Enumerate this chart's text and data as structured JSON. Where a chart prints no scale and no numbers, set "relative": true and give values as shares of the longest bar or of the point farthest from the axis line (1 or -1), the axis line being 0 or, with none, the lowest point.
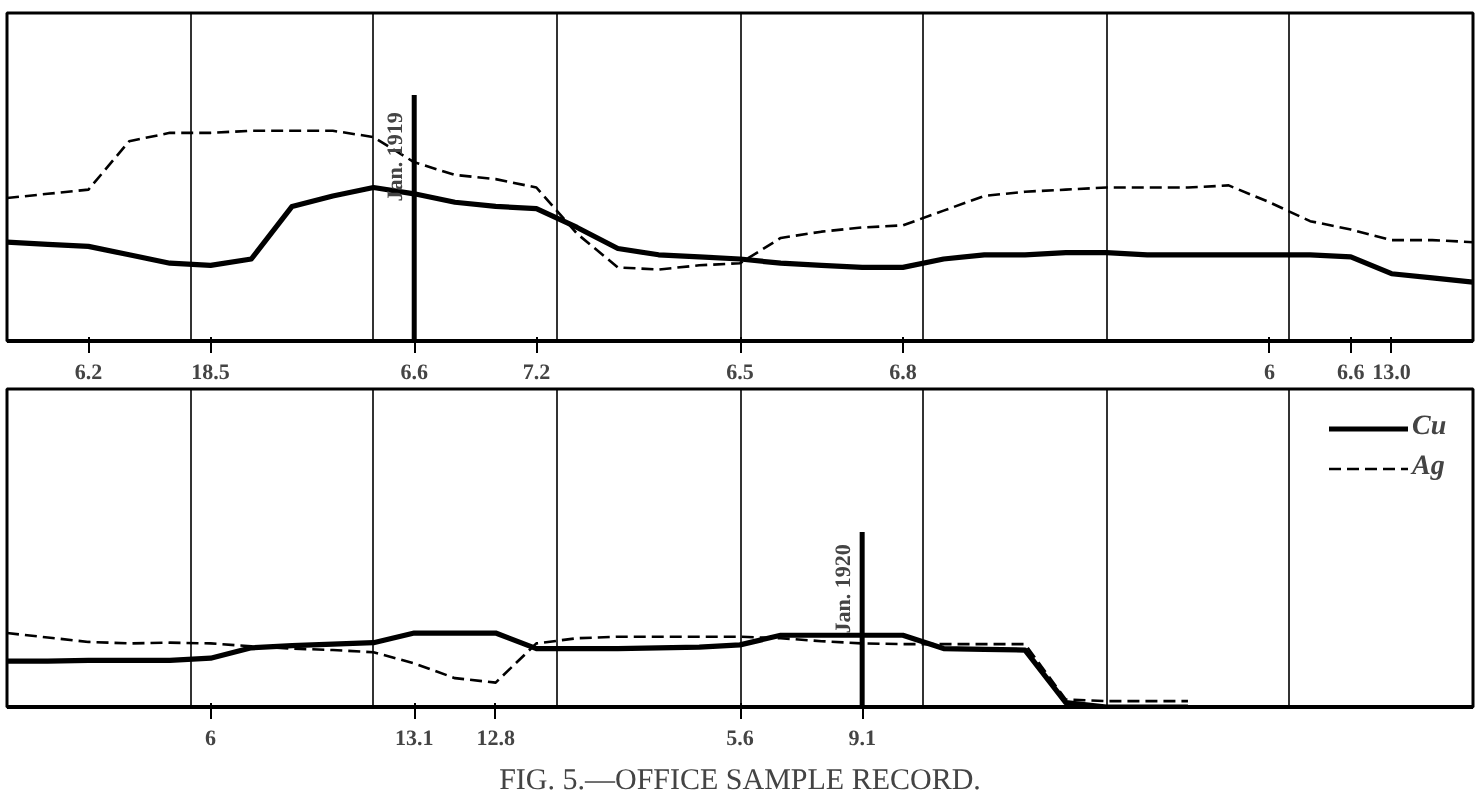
{
  "chart_data": [
    {
      "type": "line",
      "relative": true,
      "grid": "x",
      "legend": false,
      "categories": [
        null,
        null,
        "6.2",
        null,
        null,
        "18.5",
        null,
        null,
        null,
        null,
        "6.6",
        null,
        null,
        "7.2",
        null,
        null,
        null,
        null,
        "6.5",
        null,
        null,
        null,
        "6.8",
        null,
        null,
        null,
        null,
        null,
        null,
        null,
        null,
        "6",
        null,
        "6.6",
        "13.0",
        null,
        null
      ],
      "ref_lines": [
        {
          "axis": "x",
          "value": "6.6",
          "label": "Jan. 1919",
          "line_style": "solid"
        }
      ],
      "series": [
        {
          "color": "#000000",
          "line_style": "solid",
          "values": [
            0.47,
            0.46,
            0.45,
            0.41,
            0.37,
            0.36,
            0.39,
            0.64,
            0.69,
            0.73,
            0.7,
            0.66,
            0.64,
            0.63,
            0.54,
            0.44,
            0.41,
            0.4,
            0.39,
            0.37,
            0.36,
            0.35,
            0.35,
            0.39,
            0.41,
            0.41,
            0.42,
            0.42,
            0.41,
            0.41,
            0.41,
            0.41,
            0.41,
            0.4,
            0.32,
            0.3,
            0.28
          ]
        },
        {
          "color": "#000000",
          "line_style": "dashed",
          "values": [
            0.68,
            0.7,
            0.72,
            0.95,
            0.99,
            0.99,
            1.0,
            1.0,
            1.0,
            0.97,
            0.85,
            0.79,
            0.77,
            0.73,
            0.51,
            0.35,
            0.34,
            0.36,
            0.37,
            0.49,
            0.52,
            0.54,
            0.55,
            0.62,
            0.69,
            0.71,
            0.72,
            0.73,
            0.73,
            0.73,
            0.74,
            0.66,
            0.57,
            0.53,
            0.48,
            0.48,
            0.47
          ]
        }
      ]
    },
    {
      "type": "line",
      "relative": true,
      "grid": "x",
      "legend": "top right",
      "title": "FIG. 5.—OFFICE SAMPLE RECORD.",
      "categories": [
        null,
        null,
        null,
        null,
        null,
        "6",
        null,
        null,
        null,
        null,
        "13.1",
        null,
        "12.8",
        null,
        null,
        null,
        null,
        null,
        "5.6",
        null,
        null,
        "9.1",
        null,
        null,
        null,
        null,
        null,
        null,
        null,
        null,
        null,
        null,
        null,
        null,
        null,
        null,
        null
      ],
      "ref_lines": [
        {
          "axis": "x",
          "value": "9.1",
          "label": "Jan. 1920",
          "line_style": "solid"
        }
      ],
      "series": [
        {
          "name": "Cu",
          "color": "#000000",
          "line_style": "solid",
          "values": [
            0.62,
            0.62,
            0.63,
            0.63,
            0.63,
            0.66,
            0.8,
            0.83,
            0.85,
            0.87,
            1.0,
            1.0,
            1.0,
            0.79,
            0.79,
            0.79,
            0.8,
            0.81,
            0.84,
            0.97,
            0.97,
            0.97,
            0.97,
            0.79,
            0.78,
            0.77,
            0.06,
            0,
            0,
            0,
            null,
            null,
            null,
            null,
            null,
            null,
            null
          ]
        },
        {
          "name": "Ag",
          "color": "#000000",
          "line_style": "dashed",
          "values": [
            1.0,
            0.94,
            0.88,
            0.86,
            0.87,
            0.86,
            0.82,
            0.79,
            0.77,
            0.74,
            0.59,
            0.39,
            0.33,
            0.86,
            0.93,
            0.95,
            0.95,
            0.95,
            0.95,
            0.93,
            0.89,
            0.86,
            0.85,
            0.85,
            0.85,
            0.85,
            0.1,
            0.08,
            0.08,
            0.08,
            null,
            null,
            null,
            null,
            null,
            null,
            null
          ]
        }
      ]
    }
  ]
}
